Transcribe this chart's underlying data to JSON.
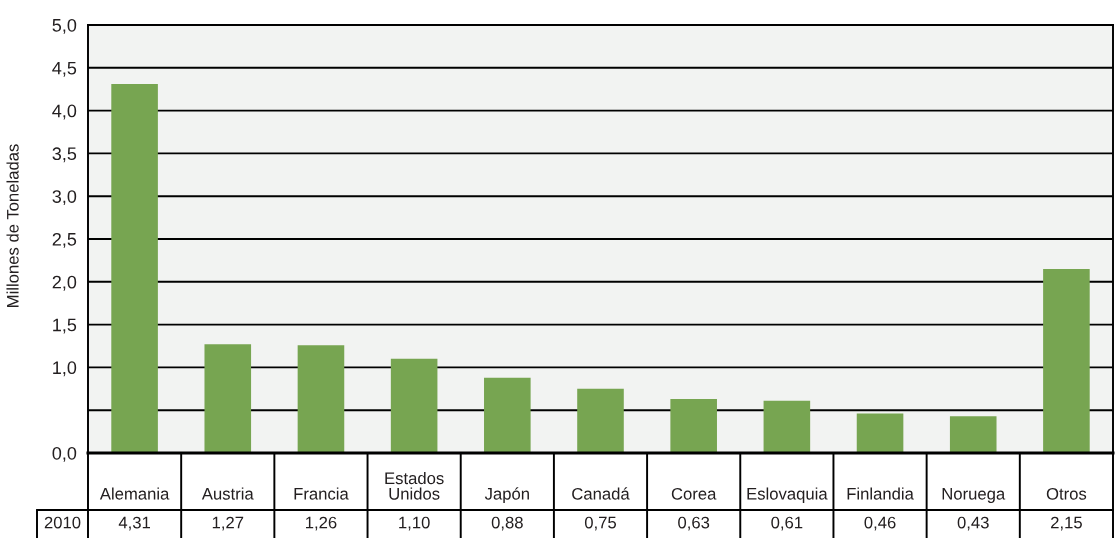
{
  "chart_data": {
    "type": "bar",
    "ylabel": "Millones de Toneladas",
    "categories": [
      "Alemania",
      "Austria",
      "Francia",
      "Estados Unidos",
      "Japón",
      "Canadá",
      "Corea",
      "Eslovaquia",
      "Finlandia",
      "Noruega",
      "Otros"
    ],
    "series": [
      {
        "name": "2010",
        "color": "#77a551",
        "values": [
          4.31,
          1.27,
          1.26,
          1.1,
          0.88,
          0.75,
          0.63,
          0.61,
          0.46,
          0.43,
          2.15
        ],
        "value_labels": [
          "4,31",
          "1,27",
          "1,26",
          "1,10",
          "0,88",
          "0,75",
          "0,63",
          "0,61",
          "0,46",
          "0,43",
          "2,15"
        ]
      }
    ],
    "ylim": [
      0,
      5
    ],
    "yticks": [
      {
        "value": 0,
        "label": "0,0"
      },
      {
        "value": 0.5,
        "label": null
      },
      {
        "value": 1,
        "label": "1,0"
      },
      {
        "value": 1.5,
        "label": "1,5"
      },
      {
        "value": 2,
        "label": "2,0"
      },
      {
        "value": 2.5,
        "label": "2,5"
      },
      {
        "value": 3,
        "label": "3,0"
      },
      {
        "value": 3.5,
        "label": "3,5"
      },
      {
        "value": 4,
        "label": "4,0"
      },
      {
        "value": 4.5,
        "label": "4,5"
      },
      {
        "value": 5,
        "label": "5,0"
      }
    ],
    "grid": "y"
  }
}
